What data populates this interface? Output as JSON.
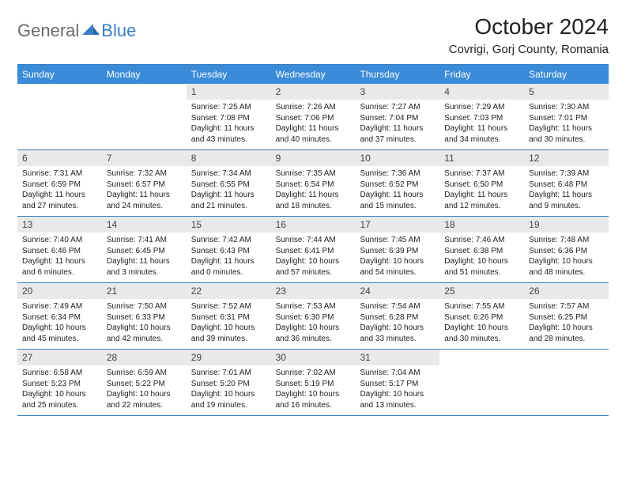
{
  "brand": {
    "part1": "General",
    "part2": "Blue"
  },
  "title": "October 2024",
  "location": "Covrigi, Gorj County, Romania",
  "colors": {
    "header_bg": "#3a8bd8",
    "rule": "#3a7fc4",
    "daynum_bg": "#e9e9e9",
    "text": "#222222",
    "logo_gray": "#6a6a6a",
    "logo_blue": "#3a7fc4"
  },
  "dow": [
    "Sunday",
    "Monday",
    "Tuesday",
    "Wednesday",
    "Thursday",
    "Friday",
    "Saturday"
  ],
  "weeks": [
    [
      null,
      null,
      {
        "n": "1",
        "sr": "7:25 AM",
        "ss": "7:08 PM",
        "dl": "11 hours and 43 minutes."
      },
      {
        "n": "2",
        "sr": "7:26 AM",
        "ss": "7:06 PM",
        "dl": "11 hours and 40 minutes."
      },
      {
        "n": "3",
        "sr": "7:27 AM",
        "ss": "7:04 PM",
        "dl": "11 hours and 37 minutes."
      },
      {
        "n": "4",
        "sr": "7:29 AM",
        "ss": "7:03 PM",
        "dl": "11 hours and 34 minutes."
      },
      {
        "n": "5",
        "sr": "7:30 AM",
        "ss": "7:01 PM",
        "dl": "11 hours and 30 minutes."
      }
    ],
    [
      {
        "n": "6",
        "sr": "7:31 AM",
        "ss": "6:59 PM",
        "dl": "11 hours and 27 minutes."
      },
      {
        "n": "7",
        "sr": "7:32 AM",
        "ss": "6:57 PM",
        "dl": "11 hours and 24 minutes."
      },
      {
        "n": "8",
        "sr": "7:34 AM",
        "ss": "6:55 PM",
        "dl": "11 hours and 21 minutes."
      },
      {
        "n": "9",
        "sr": "7:35 AM",
        "ss": "6:54 PM",
        "dl": "11 hours and 18 minutes."
      },
      {
        "n": "10",
        "sr": "7:36 AM",
        "ss": "6:52 PM",
        "dl": "11 hours and 15 minutes."
      },
      {
        "n": "11",
        "sr": "7:37 AM",
        "ss": "6:50 PM",
        "dl": "11 hours and 12 minutes."
      },
      {
        "n": "12",
        "sr": "7:39 AM",
        "ss": "6:48 PM",
        "dl": "11 hours and 9 minutes."
      }
    ],
    [
      {
        "n": "13",
        "sr": "7:40 AM",
        "ss": "6:46 PM",
        "dl": "11 hours and 6 minutes."
      },
      {
        "n": "14",
        "sr": "7:41 AM",
        "ss": "6:45 PM",
        "dl": "11 hours and 3 minutes."
      },
      {
        "n": "15",
        "sr": "7:42 AM",
        "ss": "6:43 PM",
        "dl": "11 hours and 0 minutes."
      },
      {
        "n": "16",
        "sr": "7:44 AM",
        "ss": "6:41 PM",
        "dl": "10 hours and 57 minutes."
      },
      {
        "n": "17",
        "sr": "7:45 AM",
        "ss": "6:39 PM",
        "dl": "10 hours and 54 minutes."
      },
      {
        "n": "18",
        "sr": "7:46 AM",
        "ss": "6:38 PM",
        "dl": "10 hours and 51 minutes."
      },
      {
        "n": "19",
        "sr": "7:48 AM",
        "ss": "6:36 PM",
        "dl": "10 hours and 48 minutes."
      }
    ],
    [
      {
        "n": "20",
        "sr": "7:49 AM",
        "ss": "6:34 PM",
        "dl": "10 hours and 45 minutes."
      },
      {
        "n": "21",
        "sr": "7:50 AM",
        "ss": "6:33 PM",
        "dl": "10 hours and 42 minutes."
      },
      {
        "n": "22",
        "sr": "7:52 AM",
        "ss": "6:31 PM",
        "dl": "10 hours and 39 minutes."
      },
      {
        "n": "23",
        "sr": "7:53 AM",
        "ss": "6:30 PM",
        "dl": "10 hours and 36 minutes."
      },
      {
        "n": "24",
        "sr": "7:54 AM",
        "ss": "6:28 PM",
        "dl": "10 hours and 33 minutes."
      },
      {
        "n": "25",
        "sr": "7:55 AM",
        "ss": "6:26 PM",
        "dl": "10 hours and 30 minutes."
      },
      {
        "n": "26",
        "sr": "7:57 AM",
        "ss": "6:25 PM",
        "dl": "10 hours and 28 minutes."
      }
    ],
    [
      {
        "n": "27",
        "sr": "6:58 AM",
        "ss": "5:23 PM",
        "dl": "10 hours and 25 minutes."
      },
      {
        "n": "28",
        "sr": "6:59 AM",
        "ss": "5:22 PM",
        "dl": "10 hours and 22 minutes."
      },
      {
        "n": "29",
        "sr": "7:01 AM",
        "ss": "5:20 PM",
        "dl": "10 hours and 19 minutes."
      },
      {
        "n": "30",
        "sr": "7:02 AM",
        "ss": "5:19 PM",
        "dl": "10 hours and 16 minutes."
      },
      {
        "n": "31",
        "sr": "7:04 AM",
        "ss": "5:17 PM",
        "dl": "10 hours and 13 minutes."
      },
      null,
      null
    ]
  ],
  "labels": {
    "sunrise": "Sunrise:",
    "sunset": "Sunset:",
    "daylight": "Daylight:"
  }
}
